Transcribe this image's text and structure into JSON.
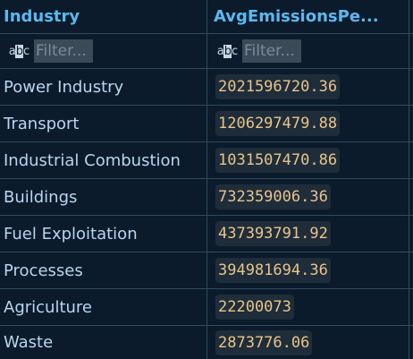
{
  "columns": {
    "industry_header": "Industry",
    "avg_header": "AvgEmissionsPe..."
  },
  "filters": {
    "icon_text_a": "a",
    "icon_text_b": "b",
    "icon_text_c": "c",
    "placeholder": "Filter..."
  },
  "rows": [
    {
      "industry": "Power Industry",
      "value": "2021596720.36"
    },
    {
      "industry": "Transport",
      "value": "1206297479.88"
    },
    {
      "industry": "Industrial Combustion",
      "value": "1031507470.86"
    },
    {
      "industry": "Buildings",
      "value": "732359006.36"
    },
    {
      "industry": "Fuel Exploitation",
      "value": "437393791.92"
    },
    {
      "industry": "Processes",
      "value": "394981694.36"
    },
    {
      "industry": "Agriculture",
      "value": "22200073"
    },
    {
      "industry": "Waste",
      "value": "2873776.06"
    }
  ],
  "colors": {
    "background": "#0b1b2b",
    "header_text": "#5bb8f0",
    "cell_text": "#b8d6ee",
    "number_text": "#e8c48a",
    "number_badge_bg": "#1f2d3a",
    "grid_line": "#2f4a60"
  }
}
